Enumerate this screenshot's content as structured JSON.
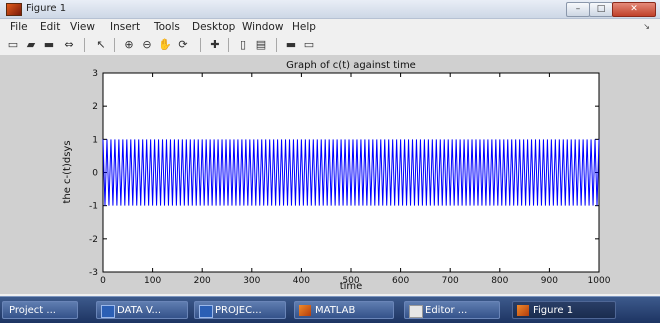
{
  "window": {
    "title": "Figure 1",
    "controls": {
      "minimize": "–",
      "maximize": "□",
      "close": "✕"
    }
  },
  "menu": {
    "items": [
      "File",
      "Edit",
      "View",
      "Insert",
      "Tools",
      "Desktop",
      "Window",
      "Help"
    ],
    "arrow": "↘"
  },
  "toolbar": {
    "icons": [
      "new-figure-icon",
      "open-file-icon",
      "save-icon",
      "print-icon",
      "select-arrow-icon",
      "zoom-in-icon",
      "zoom-out-icon",
      "pan-icon",
      "rotate-icon",
      "data-cursor-icon",
      "insert-colorbar-icon",
      "insert-legend-icon",
      "hide-plot-tools-icon",
      "show-plot-tools-icon"
    ],
    "glyphs": [
      "▭",
      "▰",
      "▬",
      "⇔",
      "↖",
      "⊕",
      "⊖",
      "✋",
      "⟳",
      "✚",
      "▯",
      "▤",
      "▬",
      "▭"
    ]
  },
  "chart_data": {
    "type": "line",
    "title": "Graph of c(t) against time",
    "xlabel": "time",
    "ylabel": "the c-(t)dsys",
    "xlim": [
      0,
      1000
    ],
    "ylim": [
      -3,
      3
    ],
    "xticks": [
      0,
      100,
      200,
      300,
      400,
      500,
      600,
      700,
      800,
      900,
      1000
    ],
    "xtick_labels": [
      "0",
      "100",
      "200",
      "300",
      "400",
      "500",
      "600",
      "700",
      "800",
      "900",
      "1000"
    ],
    "yticks": [
      -3,
      -2,
      -1,
      0,
      1,
      2,
      3
    ],
    "ytick_labels": [
      "-3",
      "-2",
      "-1",
      "0",
      "1",
      "2",
      "3"
    ],
    "grid": false,
    "series": [
      {
        "color": "#0000ff",
        "amplitude": 1,
        "period": 8,
        "x_range": [
          0,
          1000
        ]
      }
    ]
  },
  "taskbar": {
    "items": [
      {
        "label": "Project ...",
        "icon": "folder-icon",
        "active": false
      },
      {
        "label": "DATA V...",
        "icon": "word-icon",
        "active": false
      },
      {
        "label": "PROJEC...",
        "icon": "word-icon",
        "active": false
      },
      {
        "label": "MATLAB",
        "icon": "matlab-icon",
        "active": false
      },
      {
        "label": "Editor ...",
        "icon": "editor-icon",
        "active": false
      },
      {
        "label": "Figure 1",
        "icon": "matlab-icon",
        "active": true
      }
    ]
  },
  "colors": {
    "plot_line": "#0000ff",
    "axes_bg": "#ffffff",
    "figure_bg": "#d0d0d0",
    "taskbar": "#2a4577"
  }
}
